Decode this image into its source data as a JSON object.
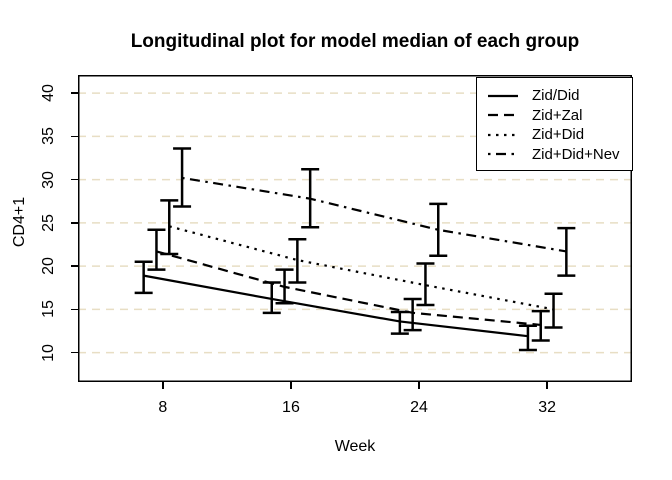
{
  "chart_data": {
    "type": "line",
    "title": "Longitudinal plot for model median of each group",
    "xlabel": "Week",
    "ylabel": "CD4+1",
    "x_ticks": [
      8,
      16,
      24,
      32
    ],
    "y_ticks": [
      10,
      15,
      20,
      25,
      30,
      35,
      40
    ],
    "x_range": [
      2.7,
      37.3
    ],
    "y_range": [
      6.6,
      42.1
    ],
    "grid": "horizontal-dashed",
    "grid_color": "#e8dec4",
    "line_color": "#000000",
    "background": "#ffffff",
    "legend_position": "top-right",
    "error_bars": true,
    "series": [
      {
        "name": "Zid/Did",
        "line_style": "solid",
        "x": [
          6.8,
          14.8,
          22.8,
          30.8
        ],
        "median": [
          18.9,
          16.2,
          13.6,
          11.9
        ],
        "lower": [
          16.9,
          14.6,
          12.2,
          10.3
        ],
        "upper": [
          20.5,
          18.1,
          14.7,
          13.1
        ]
      },
      {
        "name": "Zid+Zal",
        "line_style": "dashed",
        "x": [
          7.6,
          15.6,
          23.6,
          31.6
        ],
        "median": [
          21.7,
          17.6,
          14.6,
          13.2
        ],
        "lower": [
          19.6,
          15.7,
          12.6,
          11.4
        ],
        "upper": [
          24.2,
          19.6,
          16.2,
          14.8
        ]
      },
      {
        "name": "Zid+Did",
        "line_style": "dotted",
        "x": [
          8.4,
          16.4,
          24.4,
          32.4
        ],
        "median": [
          24.6,
          20.7,
          17.8,
          15.0
        ],
        "lower": [
          21.4,
          18.1,
          15.5,
          12.9
        ],
        "upper": [
          27.6,
          23.1,
          20.3,
          16.8
        ]
      },
      {
        "name": "Zid+Did+Nev",
        "line_style": "dashdot",
        "x": [
          9.2,
          17.2,
          25.2,
          33.2
        ],
        "median": [
          30.2,
          27.8,
          24.2,
          21.7
        ],
        "lower": [
          26.9,
          24.5,
          21.2,
          18.9
        ],
        "upper": [
          33.6,
          31.2,
          27.2,
          24.4
        ]
      }
    ]
  }
}
